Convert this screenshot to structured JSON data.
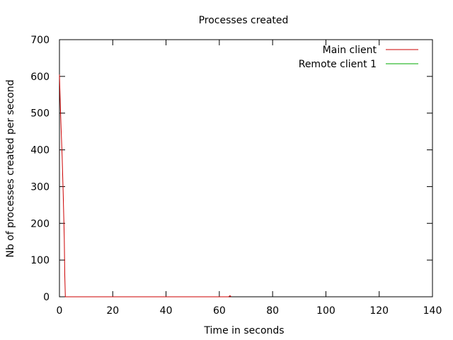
{
  "chart_data": {
    "type": "line",
    "title": "Processes created",
    "xlabel": "Time in seconds",
    "ylabel": "Nb of processes created per second",
    "xlim": [
      0,
      140
    ],
    "ylim": [
      0,
      700
    ],
    "x_ticks": [
      0,
      20,
      40,
      60,
      80,
      100,
      120,
      140
    ],
    "y_ticks": [
      0,
      100,
      200,
      300,
      400,
      500,
      600,
      700
    ],
    "x_tick_labels": [
      "0",
      "20",
      "40",
      "60",
      "80",
      "100",
      "120",
      "140"
    ],
    "y_tick_labels": [
      "0",
      "100",
      "200",
      "300",
      "400",
      "500",
      "600",
      "700"
    ],
    "grid": false,
    "legend_position": "top-right",
    "series": [
      {
        "name": "Main client",
        "color": "#cc0000",
        "points": [
          [
            0,
            605
          ],
          [
            0.3,
            530
          ],
          [
            0.6,
            460
          ],
          [
            1.0,
            380
          ],
          [
            1.4,
            280
          ],
          [
            1.8,
            160
          ],
          [
            2.0,
            60
          ],
          [
            2.2,
            0
          ],
          [
            63.5,
            0
          ],
          [
            64,
            3
          ],
          [
            64.5,
            0
          ]
        ]
      },
      {
        "name": "Remote client 1",
        "color": "#00aa00",
        "points": []
      }
    ]
  }
}
